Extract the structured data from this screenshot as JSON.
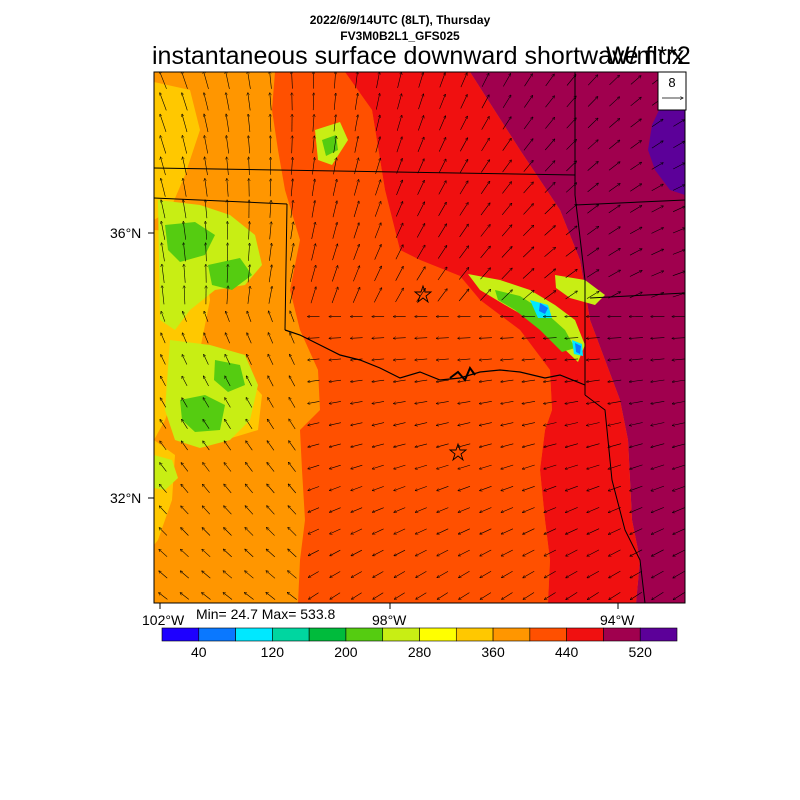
{
  "header": {
    "line1": "2022/6/9/14UTC (8LT), Thursday",
    "line2": "FV3M0B2L1_GFS025",
    "title": "instantaneous surface downward shortwave flux",
    "units": "W/m**2"
  },
  "ref_vector": {
    "label": "8"
  },
  "stats": "Min= 24.7 Max= 533.8",
  "lat_labels": [
    "36°N",
    "32°N"
  ],
  "lon_labels": [
    "102°W",
    "98°W",
    "94°W"
  ],
  "colorbar": {
    "colors": [
      "#1e00ff",
      "#0a78ff",
      "#00e8ff",
      "#00d6a0",
      "#00bb3c",
      "#55cc11",
      "#c8ee14",
      "#ffff00",
      "#ffc800",
      "#ff9600",
      "#ff5000",
      "#f01010",
      "#a0004e",
      "#5c0099"
    ],
    "labels": [
      "40",
      "120",
      "200",
      "280",
      "360",
      "440",
      "520"
    ]
  },
  "map": {
    "palette": {
      "purple": "#5c0099",
      "maroon": "#a0004e",
      "red": "#f01010",
      "red_orange": "#ff5000",
      "orange": "#ff9600",
      "light_orange": "#ffc800",
      "yellow_green": "#c8ee14",
      "green": "#55cc11",
      "cyan": "#00e8ff",
      "blue": "#0a78ff"
    }
  }
}
